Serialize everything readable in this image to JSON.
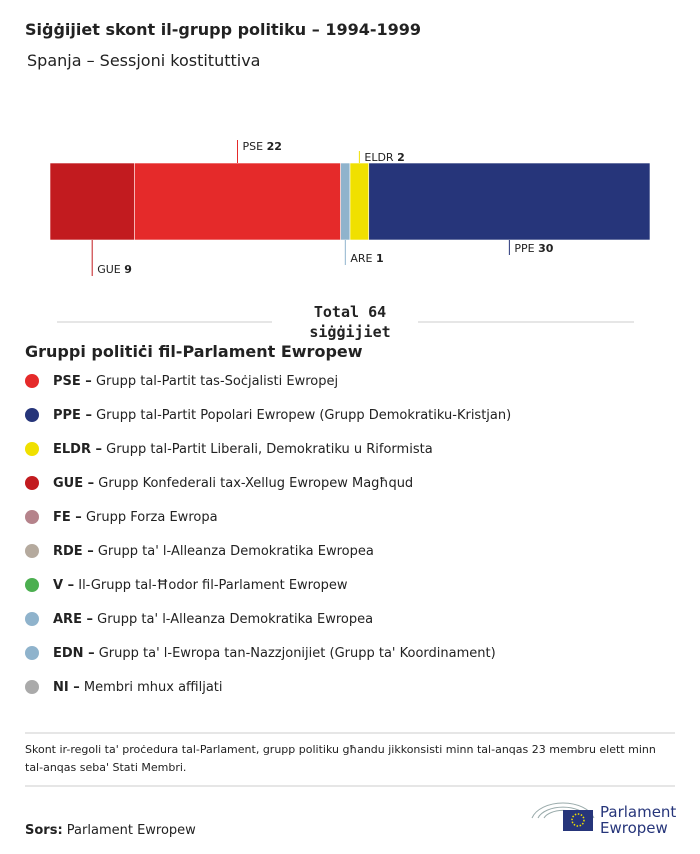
{
  "chart_data": {
    "type": "stacked-bar",
    "title": "Siġġijiet skont il-grupp politiku – 1994-1999",
    "subtitle": "Spanja – Sessjoni kostituttiva",
    "categories": [
      "GUE",
      "PSE",
      "ARE",
      "ELDR",
      "PPE"
    ],
    "values": [
      9,
      22,
      1,
      2,
      30
    ],
    "colors": [
      "#c21b1f",
      "#e52a2a",
      "#8fb3cc",
      "#f0e000",
      "#26357a"
    ],
    "total_label": "Total",
    "total": 64,
    "total_unit": "siġġijiet"
  },
  "legend": {
    "title": "Gruppi politiċi fil-Parlament Ewropew",
    "items": [
      {
        "label": "PSE –",
        "text": "Grupp tal-Partit tas-Soċjalisti Ewropej",
        "color": "#e52a2a"
      },
      {
        "label": "PPE –",
        "text": "Grupp tal-Partit Popolari Ewropew (Grupp Demokratiku-Kristjan)",
        "color": "#26357a"
      },
      {
        "label": "ELDR –",
        "text": "Grupp tal-Partit Liberali, Demokratiku u Riformista",
        "color": "#f0e000"
      },
      {
        "label": "GUE –",
        "text": "Grupp Konfederali tax-Xellug Ewropew Magħqud",
        "color": "#c21b1f"
      },
      {
        "label": "FE –",
        "text": "Grupp Forza Ewropa",
        "color": "#b5838b"
      },
      {
        "label": "RDE –",
        "text": "Grupp ta' l-Alleanza Demokratika Ewropea",
        "color": "#b5aa9e"
      },
      {
        "label": "V –",
        "text": "Il-Grupp tal-Ħodor fil-Parlament Ewropew",
        "color": "#4caf50"
      },
      {
        "label": "ARE –",
        "text": "Grupp ta' l-Alleanza Demokratika Ewropea",
        "color": "#8fb3cc"
      },
      {
        "label": "EDN –",
        "text": "Grupp ta' l-Ewropa tan-Nazzjonijiet (Grupp ta' Koordinament)",
        "color": "#8fb3cc"
      },
      {
        "label": "NI –",
        "text": "Membri mhux affiljati",
        "color": "#aaaaaa"
      }
    ]
  },
  "note": "Skont ir-regoli ta' proċedura tal-Parlament, grupp politiku għandu jikkonsisti minn tal-anqas 23 membru elett minn tal-anqas seba' Stati Membri.",
  "source": {
    "label": "Sors:",
    "text": "Parlament Ewropew"
  },
  "logo": {
    "line1": "Parlament",
    "line2": "Ewropew"
  }
}
